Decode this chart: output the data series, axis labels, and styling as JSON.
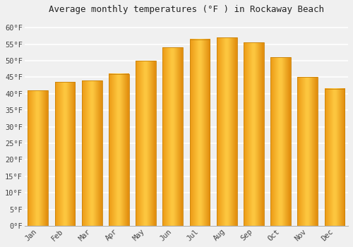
{
  "title": "Average monthly temperatures (°F ) in Rockaway Beach",
  "months": [
    "Jan",
    "Feb",
    "Mar",
    "Apr",
    "May",
    "Jun",
    "Jul",
    "Aug",
    "Sep",
    "Oct",
    "Nov",
    "Dec"
  ],
  "values": [
    41,
    43.5,
    44,
    46,
    50,
    54,
    56.5,
    57,
    55.5,
    51,
    45,
    41.5
  ],
  "bar_color_left": "#F5A623",
  "bar_color_center": "#FFC845",
  "bar_color_right": "#E8921A",
  "bar_edge_color": "#C8820A",
  "ylim": [
    0,
    63
  ],
  "yticks": [
    0,
    5,
    10,
    15,
    20,
    25,
    30,
    35,
    40,
    45,
    50,
    55,
    60
  ],
  "ytick_labels": [
    "0°F",
    "5°F",
    "10°F",
    "15°F",
    "20°F",
    "25°F",
    "30°F",
    "35°F",
    "40°F",
    "45°F",
    "50°F",
    "55°F",
    "60°F"
  ],
  "background_color": "#f0f0f0",
  "grid_color": "#ffffff",
  "title_fontsize": 9,
  "tick_fontsize": 7.5,
  "font_family": "monospace",
  "bar_width": 0.75
}
